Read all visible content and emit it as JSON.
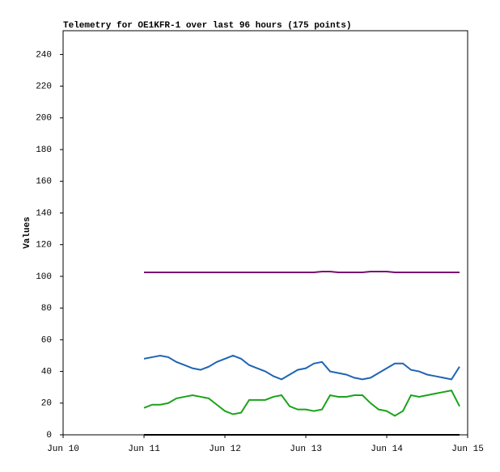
{
  "chart_data": {
    "type": "line",
    "title": "Telemetry for OE1KFR-1 over last 96 hours (175 points)",
    "y_label": "Values",
    "x": [
      11.0,
      11.1,
      11.2,
      11.3,
      11.4,
      11.5,
      11.6,
      11.7,
      11.8,
      11.9,
      12.0,
      12.1,
      12.2,
      12.3,
      12.4,
      12.5,
      12.6,
      12.7,
      12.8,
      12.9,
      13.0,
      13.1,
      13.2,
      13.3,
      13.4,
      13.5,
      13.6,
      13.7,
      13.8,
      13.9,
      14.0,
      14.1,
      14.2,
      14.3,
      14.4,
      14.5,
      14.6,
      14.7,
      14.8,
      14.9
    ],
    "series": [
      {
        "color": "#7a0e6e",
        "values": [
          102.5,
          102.5,
          102.5,
          102.5,
          102.5,
          102.5,
          102.5,
          102.5,
          102.5,
          102.5,
          102.5,
          102.5,
          102.5,
          102.5,
          102.5,
          102.5,
          102.5,
          102.5,
          102.5,
          102.5,
          102.5,
          102.5,
          103,
          103,
          102.5,
          102.5,
          102.5,
          102.5,
          103,
          103,
          103,
          102.5,
          102.5,
          102.5,
          102.5,
          102.5,
          102.5,
          102.5,
          102.5,
          102.5
        ]
      },
      {
        "color": "#1f64b4",
        "values": [
          48,
          49,
          50,
          49,
          46,
          44,
          42,
          41,
          43,
          46,
          48,
          50,
          48,
          44,
          42,
          40,
          37,
          35,
          38,
          41,
          42,
          45,
          46,
          40,
          39,
          38,
          36,
          35,
          36,
          39,
          42,
          45,
          45,
          41,
          40,
          38,
          37,
          36,
          35,
          43
        ]
      },
      {
        "color": "#1aa31a",
        "values": [
          17,
          19,
          19,
          20,
          23,
          24,
          25,
          24,
          23,
          19,
          15,
          13,
          14,
          22,
          22,
          22,
          24,
          25,
          18,
          16,
          16,
          15,
          16,
          25,
          24,
          24,
          25,
          25,
          20,
          16,
          15,
          12,
          15,
          25,
          24,
          25,
          26,
          27,
          28,
          18
        ]
      },
      {
        "color": "#000000",
        "values": [
          0,
          0,
          0,
          0,
          0,
          0,
          0,
          0,
          0,
          0,
          0,
          0,
          0,
          0,
          0,
          0,
          0,
          0,
          0,
          0,
          0,
          0,
          0,
          0,
          0,
          0,
          0,
          0,
          0,
          0,
          0,
          0,
          0,
          0,
          0,
          0,
          0,
          0,
          0,
          0
        ]
      }
    ],
    "xlim": [
      10,
      15
    ],
    "xticks": [
      {
        "value": 10,
        "label": "Jun 10"
      },
      {
        "value": 11,
        "label": "Jun 11"
      },
      {
        "value": 12,
        "label": "Jun 12"
      },
      {
        "value": 13,
        "label": "Jun 13"
      },
      {
        "value": 14,
        "label": "Jun 14"
      },
      {
        "value": 15,
        "label": "Jun 15"
      }
    ],
    "ylim": [
      0,
      255
    ],
    "yticks": [
      0,
      20,
      40,
      60,
      80,
      100,
      120,
      140,
      160,
      180,
      200,
      220,
      240
    ]
  }
}
